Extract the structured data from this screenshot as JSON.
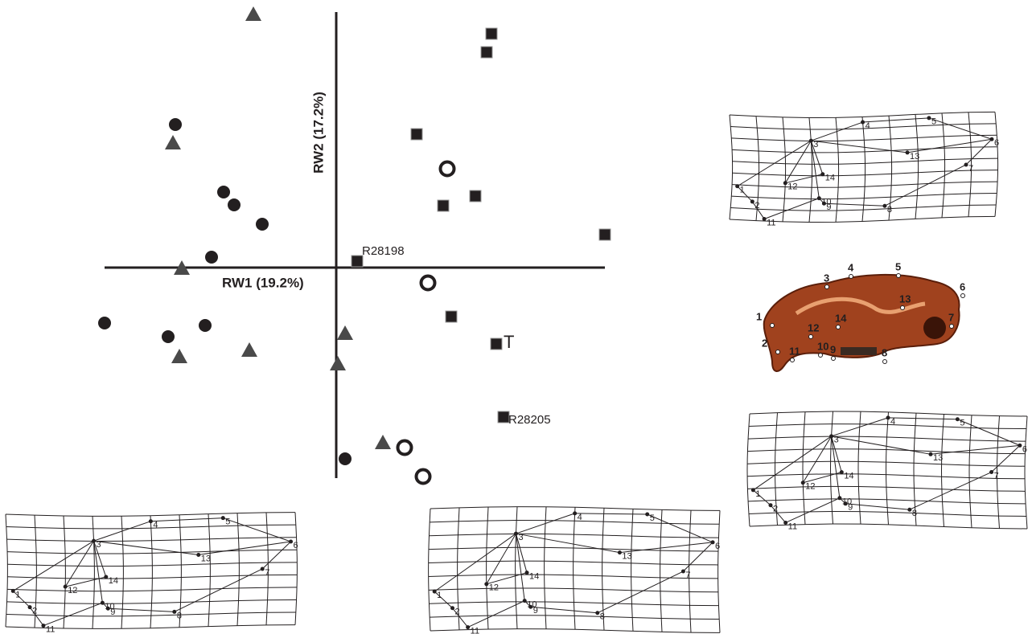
{
  "chart_data": {
    "type": "scatter",
    "x_label": "RW1 (19.2%)",
    "y_label": "RW2 (17.2%)",
    "xlim": [
      -0.288,
      0.334
    ],
    "ylim": [
      -0.262,
      0.318
    ],
    "series": [
      {
        "marker": "circle",
        "color": "#231f20",
        "x": [
          -0.2,
          -0.14,
          -0.127,
          -0.092,
          -0.155,
          -0.288,
          -0.209,
          -0.163,
          0.011
        ],
        "y": [
          0.178,
          0.094,
          0.078,
          0.054,
          0.013,
          -0.069,
          -0.086,
          -0.072,
          -0.238
        ]
      },
      {
        "marker": "triangle",
        "color": "#4a4a4a",
        "x": [
          -0.103,
          -0.203,
          -0.192,
          -0.195,
          -0.108,
          0.011,
          0.002,
          0.058
        ],
        "y": [
          0.315,
          0.155,
          -0.001,
          -0.111,
          -0.103,
          -0.082,
          -0.12,
          -0.218
        ]
      },
      {
        "marker": "square",
        "color": "#231f20",
        "x": [
          0.193,
          0.187,
          0.1,
          0.173,
          0.133,
          0.334,
          0.026,
          0.143,
          0.199,
          0.208
        ],
        "y": [
          0.291,
          0.268,
          0.166,
          0.089,
          0.077,
          0.041,
          0.008,
          -0.061,
          -0.095,
          -0.186
        ],
        "labels": [
          null,
          null,
          null,
          null,
          null,
          null,
          "R28198",
          null,
          "T",
          "R28205"
        ]
      },
      {
        "marker": "open-circle",
        "color": "#231f20",
        "x": [
          0.138,
          0.114,
          0.085,
          0.108
        ],
        "y": [
          0.123,
          -0.019,
          -0.224,
          -0.26
        ]
      }
    ]
  },
  "landmarks": [
    "1",
    "2",
    "3",
    "4",
    "5",
    "6",
    "7",
    "8",
    "9",
    "10",
    "11",
    "12",
    "13",
    "14"
  ]
}
